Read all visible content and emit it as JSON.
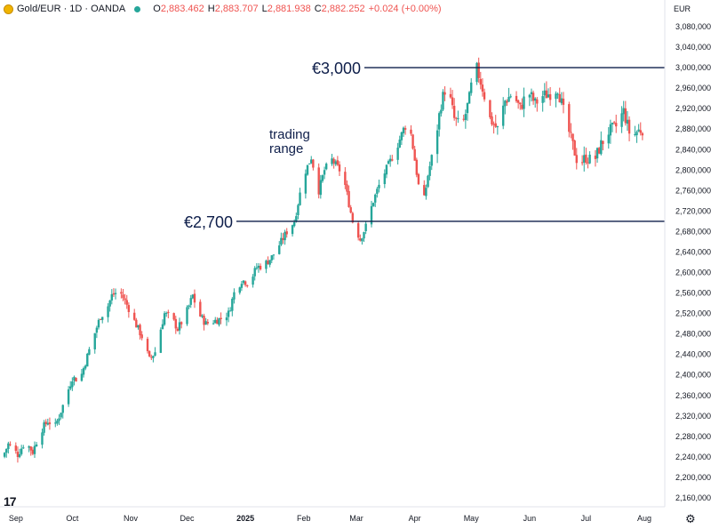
{
  "header": {
    "symbol": "Gold/EUR · 1D · OANDA",
    "open_label": "O",
    "open": "2,883.462",
    "high_label": "H",
    "high": "2,883.707",
    "low_label": "L",
    "low": "2,881.938",
    "close_label": "C",
    "close": "2,882.252",
    "change": "+0.024 (+0.00%)"
  },
  "currency": "EUR",
  "colors": {
    "up": "#26a69a",
    "down": "#ef5350",
    "lines": "#0e1e4a"
  },
  "chart_data": {
    "type": "candlestick",
    "title": "",
    "y_ticks": [
      "3,080,000",
      "3,040,000",
      "3,000,000",
      "2,960,000",
      "2,920,000",
      "2,880,000",
      "2,840,000",
      "2,800,000",
      "2,760,000",
      "2,720,000",
      "2,680,000",
      "2,640,000",
      "2,600,000",
      "2,560,000",
      "2,520,000",
      "2,480,000",
      "2,440,000",
      "2,400,000",
      "2,360,000",
      "2,320,000",
      "2,280,000",
      "2,240,000",
      "2,200,000",
      "2,160,000"
    ],
    "ylim": [
      2140,
      3100
    ],
    "x_ticks": [
      {
        "label": "Sep",
        "day": 7
      },
      {
        "label": "Oct",
        "day": 37
      },
      {
        "label": "Nov",
        "day": 68
      },
      {
        "label": "Dec",
        "day": 98
      },
      {
        "label": "2025",
        "day": 129,
        "bold": true
      },
      {
        "label": "Feb",
        "day": 160
      },
      {
        "label": "Mar",
        "day": 188
      },
      {
        "label": "Apr",
        "day": 219
      },
      {
        "label": "May",
        "day": 249
      },
      {
        "label": "Jun",
        "day": 280
      },
      {
        "label": "Jul",
        "day": 310
      },
      {
        "label": "Aug",
        "day": 341
      }
    ],
    "anchors": [
      [
        0,
        2240
      ],
      [
        3,
        2265
      ],
      [
        8,
        2245
      ],
      [
        12,
        2270
      ],
      [
        16,
        2250
      ],
      [
        20,
        2290
      ],
      [
        24,
        2310
      ],
      [
        28,
        2300
      ],
      [
        33,
        2350
      ],
      [
        37,
        2395
      ],
      [
        41,
        2390
      ],
      [
        47,
        2460
      ],
      [
        52,
        2515
      ],
      [
        55,
        2525
      ],
      [
        58,
        2555
      ],
      [
        62,
        2565
      ],
      [
        67,
        2530
      ],
      [
        70,
        2505
      ],
      [
        74,
        2475
      ],
      [
        78,
        2430
      ],
      [
        81,
        2445
      ],
      [
        86,
        2520
      ],
      [
        90,
        2510
      ],
      [
        93,
        2490
      ],
      [
        97,
        2515
      ],
      [
        101,
        2555
      ],
      [
        104,
        2520
      ],
      [
        108,
        2500
      ],
      [
        112,
        2505
      ],
      [
        116,
        2510
      ],
      [
        120,
        2520
      ],
      [
        123,
        2560
      ],
      [
        127,
        2585
      ],
      [
        131,
        2580
      ],
      [
        135,
        2610
      ],
      [
        139,
        2615
      ],
      [
        143,
        2630
      ],
      [
        148,
        2660
      ],
      [
        151,
        2680
      ],
      [
        155,
        2700
      ],
      [
        160,
        2790
      ],
      [
        164,
        2825
      ],
      [
        168,
        2760
      ],
      [
        171,
        2800
      ],
      [
        175,
        2820
      ],
      [
        179,
        2800
      ],
      [
        182,
        2770
      ],
      [
        186,
        2700
      ],
      [
        190,
        2665
      ],
      [
        193,
        2690
      ],
      [
        197,
        2740
      ],
      [
        201,
        2780
      ],
      [
        205,
        2810
      ],
      [
        209,
        2840
      ],
      [
        213,
        2880
      ],
      [
        216,
        2895
      ],
      [
        219,
        2820
      ],
      [
        223,
        2720
      ],
      [
        226,
        2790
      ],
      [
        230,
        2860
      ],
      [
        233,
        2930
      ],
      [
        236,
        2970
      ],
      [
        240,
        2900
      ],
      [
        244,
        2880
      ],
      [
        248,
        2940
      ],
      [
        251,
        3010
      ],
      [
        255,
        2960
      ],
      [
        259,
        2900
      ],
      [
        263,
        2880
      ],
      [
        267,
        2935
      ],
      [
        271,
        2950
      ],
      [
        275,
        2920
      ],
      [
        279,
        2955
      ],
      [
        283,
        2930
      ],
      [
        287,
        2945
      ],
      [
        291,
        2950
      ],
      [
        295,
        2960
      ],
      [
        298,
        2915
      ],
      [
        302,
        2860
      ],
      [
        306,
        2810
      ],
      [
        310,
        2825
      ],
      [
        314,
        2815
      ],
      [
        318,
        2850
      ],
      [
        322,
        2875
      ],
      [
        326,
        2885
      ],
      [
        330,
        2915
      ],
      [
        334,
        2860
      ],
      [
        337,
        2875
      ],
      [
        341,
        2882
      ]
    ],
    "horizontal_levels": [
      {
        "value": 3000,
        "label": "€3,000"
      },
      {
        "value": 2700,
        "label": "€2,700"
      }
    ],
    "annotations": [
      {
        "text_line1": "trading",
        "text_line2": "range"
      }
    ]
  }
}
